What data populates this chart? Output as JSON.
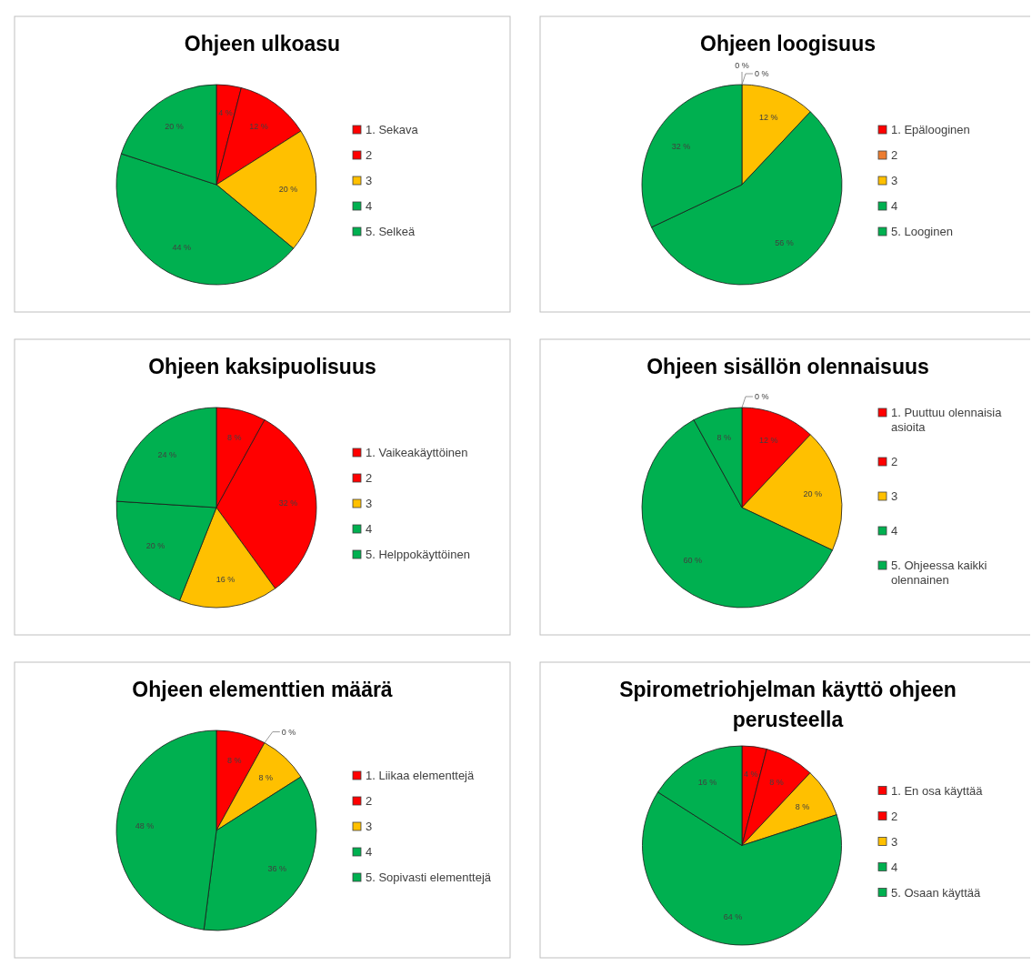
{
  "chart_data": [
    {
      "type": "pie",
      "title": "Ohjeen ulkoasu",
      "categories": [
        "1. Sekava",
        "2",
        "3",
        "4",
        "5. Selkeä"
      ],
      "values": [
        4,
        12,
        20,
        44,
        20
      ],
      "colors": [
        "#ff0000",
        "#ff0000",
        "#ffc000",
        "#00b050",
        "#00b050"
      ],
      "value_labels": [
        "4 %",
        "12 %",
        "20 %",
        "44 %",
        "20 %"
      ],
      "legend": "right"
    },
    {
      "type": "pie",
      "title": "Ohjeen loogisuus",
      "categories": [
        "1. Epälooginen",
        "2",
        "3",
        "4",
        "5. Looginen"
      ],
      "values": [
        0,
        0,
        12,
        56,
        32
      ],
      "colors": [
        "#ff0000",
        "#ed7d31",
        "#ffc000",
        "#00b050",
        "#00b050"
      ],
      "value_labels": [
        "0 %",
        "0 %",
        "12 %",
        "56 %",
        "32 %"
      ],
      "legend": "right"
    },
    {
      "type": "pie",
      "title": "Ohjeen kaksipuolisuus",
      "categories": [
        "1. Vaikeakäyttöinen",
        "2",
        "3",
        "4",
        "5. Helppokäyttöinen"
      ],
      "values": [
        8,
        32,
        16,
        20,
        24
      ],
      "colors": [
        "#ff0000",
        "#ff0000",
        "#ffc000",
        "#00b050",
        "#00b050"
      ],
      "value_labels": [
        "8 %",
        "32 %",
        "16 %",
        "20 %",
        "24 %"
      ],
      "legend": "right"
    },
    {
      "type": "pie",
      "title": "Ohjeen sisällön olennaisuus",
      "categories": [
        "1. Puuttuu olennaisia asioita",
        "2",
        "3",
        "4",
        "5. Ohjeessa kaikki olennainen"
      ],
      "values": [
        0,
        12,
        20,
        60,
        8
      ],
      "colors": [
        "#ff0000",
        "#ff0000",
        "#ffc000",
        "#00b050",
        "#00b050"
      ],
      "value_labels": [
        "0 %",
        "12 %",
        "20 %",
        "60 %",
        "8 %"
      ],
      "legend": "right"
    },
    {
      "type": "pie",
      "title": "Ohjeen elementtien määrä",
      "categories": [
        "1. Liikaa elementtejä",
        "2",
        "3",
        "4",
        "5. Sopivasti elementtejä"
      ],
      "values": [
        8,
        0,
        8,
        36,
        48
      ],
      "colors": [
        "#ff0000",
        "#ff0000",
        "#ffc000",
        "#00b050",
        "#00b050"
      ],
      "value_labels": [
        "8 %",
        "0 %",
        "8 %",
        "36 %",
        "48 %"
      ],
      "legend": "right"
    },
    {
      "type": "pie",
      "title": "Spirometriohjelman käyttö ohjeen perusteella",
      "categories": [
        "1. En osa käyttää",
        "2",
        "3",
        "4",
        "5. Osaan käyttää"
      ],
      "values": [
        4,
        8,
        8,
        64,
        16
      ],
      "colors": [
        "#ff0000",
        "#ff0000",
        "#ffc000",
        "#00b050",
        "#00b050"
      ],
      "value_labels": [
        "4 %",
        "8 %",
        "8 %",
        "64 %",
        "16 %"
      ],
      "legend": "right"
    }
  ]
}
